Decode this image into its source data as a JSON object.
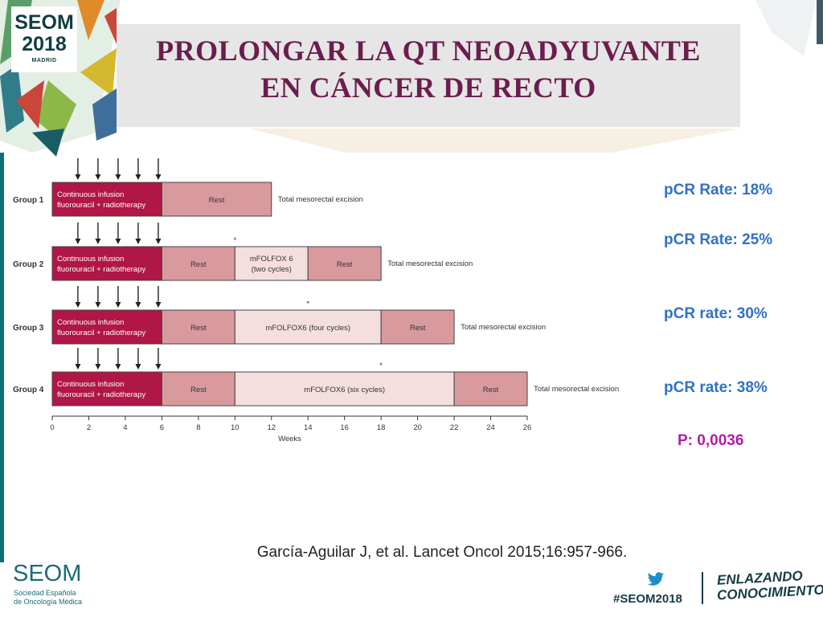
{
  "logo": {
    "name": "SEOM",
    "year": "2018",
    "city": "MADRID"
  },
  "title": {
    "line1": "PROLONGAR LA QT NEOADYUVANTE",
    "line2": "EN CÁNCER DE RECTO"
  },
  "colors": {
    "title": "#6c1d4e",
    "crt_bar": "#b01646",
    "rest": "#d99a9e",
    "mfolfox": "#f5dede",
    "pcr_text": "#2f72c4",
    "p_text": "#b01ea6",
    "footer": "#153b46"
  },
  "chart_data": {
    "type": "gantt",
    "xlabel": "Weeks",
    "xlim": [
      0,
      26
    ],
    "xticks": [
      0,
      2,
      4,
      6,
      8,
      10,
      12,
      14,
      16,
      18,
      20,
      22,
      24,
      26
    ],
    "radiotherapy_arrow_weeks": [
      0.7,
      1.8,
      2.9,
      4.0,
      5.1
    ],
    "groups": [
      {
        "label": "Group 1",
        "segments": [
          {
            "start": 0,
            "end": 6,
            "kind": "crt",
            "text": [
              "Continuous infusion",
              "fluorouracil + radiotherapy"
            ]
          },
          {
            "start": 6,
            "end": 12,
            "kind": "rest",
            "text": [
              "Rest"
            ]
          }
        ],
        "end_label": "Total mesorectal excision",
        "star_week": null
      },
      {
        "label": "Group 2",
        "segments": [
          {
            "start": 0,
            "end": 6,
            "kind": "crt",
            "text": [
              "Continuous infusion",
              "fluorouracil + radiotherapy"
            ]
          },
          {
            "start": 6,
            "end": 10,
            "kind": "rest",
            "text": [
              "Rest"
            ]
          },
          {
            "start": 10,
            "end": 14,
            "kind": "mfolfox",
            "text": [
              "mFOLFOX 6",
              "(two cycles)"
            ]
          },
          {
            "start": 14,
            "end": 18,
            "kind": "rest",
            "text": [
              "Rest"
            ]
          }
        ],
        "end_label": "Total mesorectal excision",
        "star_week": 10
      },
      {
        "label": "Group 3",
        "segments": [
          {
            "start": 0,
            "end": 6,
            "kind": "crt",
            "text": [
              "Continuous infusion",
              "fluorouracil + radiotherapy"
            ]
          },
          {
            "start": 6,
            "end": 10,
            "kind": "rest",
            "text": [
              "Rest"
            ]
          },
          {
            "start": 10,
            "end": 18,
            "kind": "mfolfox",
            "text": [
              "mFOLFOX6 (four cycles)"
            ]
          },
          {
            "start": 18,
            "end": 22,
            "kind": "rest",
            "text": [
              "Rest"
            ]
          }
        ],
        "end_label": "Total mesorectal excision",
        "star_week": 14
      },
      {
        "label": "Group 4",
        "segments": [
          {
            "start": 0,
            "end": 6,
            "kind": "crt",
            "text": [
              "Continuous infusion",
              "fluorouracil + radiotherapy"
            ]
          },
          {
            "start": 6,
            "end": 10,
            "kind": "rest",
            "text": [
              "Rest"
            ]
          },
          {
            "start": 10,
            "end": 22,
            "kind": "mfolfox",
            "text": [
              "mFOLFOX6 (six cycles)"
            ]
          },
          {
            "start": 22,
            "end": 26,
            "kind": "rest",
            "text": [
              "Rest"
            ]
          }
        ],
        "end_label": "Total mesorectal excision",
        "star_week": 18
      }
    ]
  },
  "results": {
    "pcr": [
      "pCR Rate: 18%",
      "pCR Rate: 25%",
      "pCR rate: 30%",
      "pCR rate: 38%"
    ],
    "p_value": "P: 0,0036"
  },
  "citation": "García-Aguilar J, et al. Lancet Oncol 2015;16:957-966.",
  "footer": {
    "org": "SEOM",
    "org_line1": "Sociedad Española",
    "org_line2": "de Oncología Médica",
    "hashtag": "#SEOM2018",
    "tagline_line1": "ENLAZANDO",
    "tagline_line2": "CONOCIMIENTO"
  }
}
